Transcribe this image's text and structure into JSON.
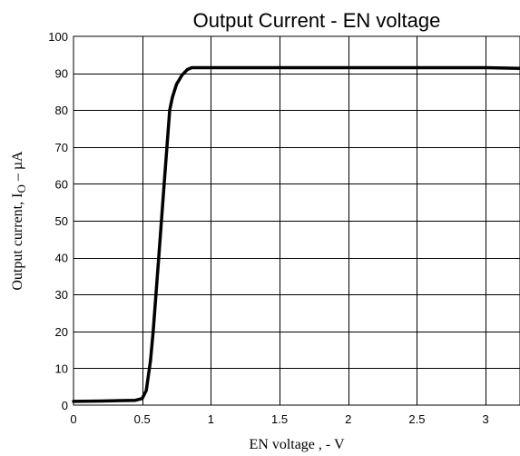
{
  "chart_data": {
    "type": "line",
    "title": "Output Current - EN voltage",
    "xlabel": "EN voltage , - V",
    "ylabel_main": "Output current, I",
    "ylabel_sub": "O",
    "ylabel_tail": " – µA",
    "xlim": [
      0,
      3.25
    ],
    "ylim": [
      0,
      100
    ],
    "grid": true,
    "x_ticks": [
      0,
      0.5,
      1,
      1.5,
      2,
      2.5,
      3
    ],
    "x_tick_labels": [
      "0",
      "0.5",
      "1",
      "1.5",
      "2",
      "2.5",
      "3"
    ],
    "y_ticks": [
      0,
      10,
      20,
      30,
      40,
      50,
      60,
      70,
      80,
      90,
      100
    ],
    "y_tick_labels": [
      "0",
      "10",
      "20",
      "30",
      "40",
      "50",
      "60",
      "70",
      "80",
      "90",
      "100"
    ],
    "series": [
      {
        "x": [
          0,
          0.2,
          0.45,
          0.5,
          0.53,
          0.56,
          0.58,
          0.62,
          0.66,
          0.7,
          0.72,
          0.75,
          0.79,
          0.83,
          0.86,
          1.0,
          1.5,
          2.0,
          2.5,
          3.0,
          3.25
        ],
        "y": [
          1.0,
          1.1,
          1.3,
          1.8,
          4.0,
          12.0,
          20.0,
          40.0,
          60.0,
          80.0,
          83.5,
          87.0,
          89.5,
          91.0,
          91.5,
          91.5,
          91.5,
          91.5,
          91.5,
          91.5,
          91.3
        ]
      }
    ]
  }
}
